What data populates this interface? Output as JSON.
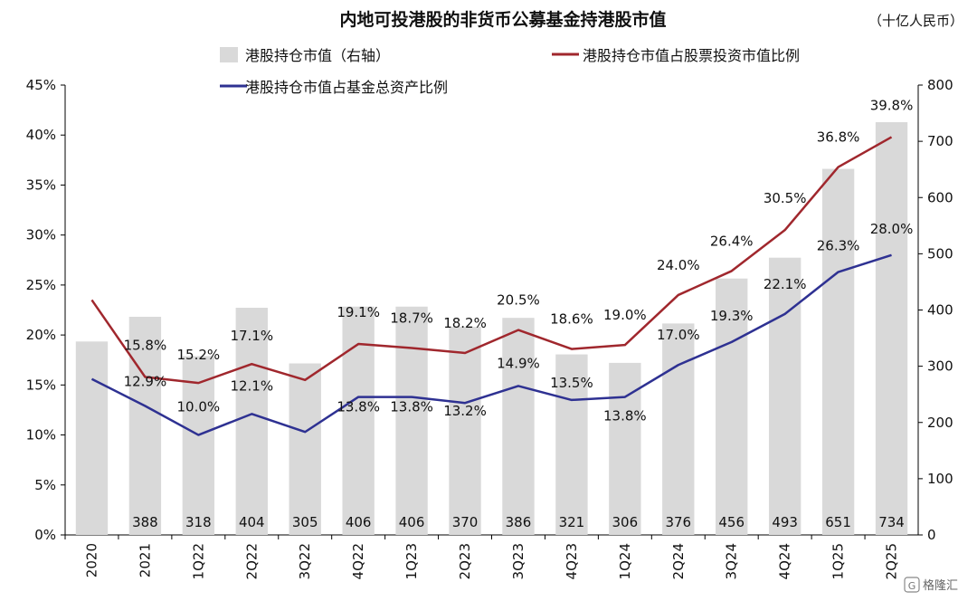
{
  "chart_data": {
    "type": "bar+line",
    "title": "内地可投港股的非货币公募基金持港股市值",
    "unit": "（十亿人民币）",
    "categories": [
      "2020",
      "2021",
      "1Q22",
      "2Q22",
      "3Q22",
      "4Q22",
      "1Q23",
      "2Q23",
      "3Q23",
      "4Q23",
      "1Q24",
      "2Q24",
      "3Q24",
      "4Q24",
      "1Q25",
      "2Q25"
    ],
    "bar_series": {
      "name": "港股持仓市值（右轴）",
      "axis": "right",
      "values": [
        344,
        388,
        318,
        404,
        305,
        406,
        406,
        370,
        386,
        321,
        306,
        376,
        456,
        493,
        651,
        734
      ],
      "labels": [
        "",
        "388",
        "318",
        "404",
        "305",
        "406",
        "406",
        "370",
        "386",
        "321",
        "306",
        "376",
        "456",
        "493",
        "651",
        "734"
      ],
      "color": "#d9d9d9"
    },
    "line_series": [
      {
        "name": "港股持仓市值占股票投资市值比例",
        "axis": "left",
        "color": "#a0272d",
        "values": [
          23.5,
          15.8,
          15.2,
          17.1,
          15.5,
          19.1,
          18.7,
          18.2,
          20.5,
          18.6,
          19.0,
          24.0,
          26.4,
          30.5,
          36.8,
          39.8
        ],
        "labels": [
          "",
          "15.8%",
          "15.2%",
          "17.1%",
          "",
          "19.1%",
          "18.7%",
          "18.2%",
          "20.5%",
          "18.6%",
          "19.0%",
          "24.0%",
          "26.4%",
          "30.5%",
          "36.8%",
          "39.8%"
        ]
      },
      {
        "name": "港股持仓市值占基金总资产比例",
        "axis": "left",
        "color": "#2e3192",
        "values": [
          15.6,
          12.9,
          10.0,
          12.1,
          10.3,
          13.8,
          13.8,
          13.2,
          14.9,
          13.5,
          13.8,
          17.0,
          19.3,
          22.1,
          26.3,
          28.0
        ],
        "labels": [
          "",
          "12.9%",
          "10.0%",
          "12.1%",
          "",
          "13.8%",
          "13.8%",
          "13.2%",
          "14.9%",
          "13.5%",
          "13.8%",
          "17.0%",
          "19.3%",
          "22.1%",
          "26.3%",
          "28.0%"
        ]
      }
    ],
    "left_axis": {
      "ticks": [
        "0%",
        "5%",
        "10%",
        "15%",
        "20%",
        "25%",
        "30%",
        "35%",
        "40%",
        "45%"
      ],
      "range": [
        0,
        45
      ]
    },
    "right_axis": {
      "ticks": [
        "0",
        "100",
        "200",
        "300",
        "400",
        "500",
        "600",
        "700",
        "800"
      ],
      "range": [
        0,
        800
      ]
    },
    "grid": false,
    "legend_position": "top"
  },
  "watermark": "格隆汇",
  "watermark_logo_text": "G"
}
